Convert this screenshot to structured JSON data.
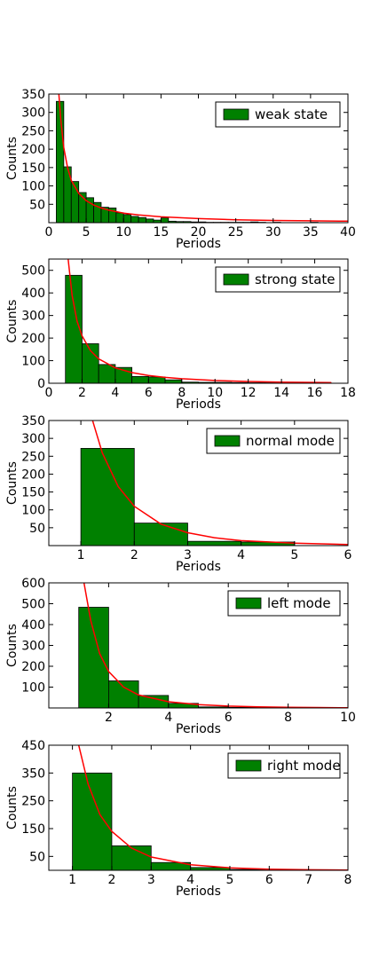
{
  "colors": {
    "bar_fill": "#008000",
    "bar_edge": "#000000",
    "curve": "#ff0000",
    "frame": "#000000"
  },
  "chart_data": [
    {
      "type": "bar",
      "legend": "weak state",
      "legend_position": "top-right",
      "xlabel": "Periods",
      "ylabel": "Counts",
      "xlim": [
        0,
        40
      ],
      "ylim": [
        0,
        350
      ],
      "xticks": [
        "0",
        "5",
        "10",
        "15",
        "20",
        "25",
        "30",
        "35",
        "40"
      ],
      "yticks": [
        "50",
        "100",
        "150",
        "200",
        "250",
        "300",
        "350"
      ],
      "bins": [
        [
          1,
          2,
          330
        ],
        [
          2,
          3,
          152
        ],
        [
          3,
          4,
          112
        ],
        [
          4,
          5,
          82
        ],
        [
          5,
          6,
          68
        ],
        [
          6,
          7,
          55
        ],
        [
          7,
          8,
          42
        ],
        [
          8,
          9,
          40
        ],
        [
          9,
          10,
          27
        ],
        [
          10,
          11,
          22
        ],
        [
          11,
          12,
          17
        ],
        [
          12,
          13,
          14
        ],
        [
          13,
          14,
          10
        ],
        [
          14,
          15,
          7
        ],
        [
          15,
          16,
          13
        ],
        [
          16,
          17,
          4
        ],
        [
          17,
          18,
          3
        ],
        [
          18,
          19,
          3
        ],
        [
          19,
          20,
          2
        ],
        [
          20,
          21,
          2
        ],
        [
          21,
          22,
          1
        ],
        [
          22,
          23,
          1
        ],
        [
          23,
          24,
          1
        ],
        [
          24,
          25,
          1
        ],
        [
          25,
          26,
          1
        ],
        [
          26,
          27,
          1
        ],
        [
          27,
          28,
          2
        ],
        [
          28,
          29,
          1
        ],
        [
          30,
          31,
          1
        ],
        [
          35,
          36,
          1
        ]
      ],
      "fit_curve": {
        "x": [
          1.3,
          1.6,
          2,
          2.5,
          3,
          4,
          5,
          6,
          7,
          8,
          10,
          12,
          15,
          20,
          25,
          30,
          35,
          40
        ],
        "y": [
          360,
          280,
          205,
          150,
          115,
          80,
          60,
          48,
          40,
          34,
          26,
          21,
          16,
          11,
          8,
          6,
          5,
          4
        ]
      }
    },
    {
      "type": "bar",
      "legend": "strong state",
      "legend_position": "top-right",
      "xlabel": "Periods",
      "ylabel": "Counts",
      "xlim": [
        0,
        18
      ],
      "ylim": [
        0,
        550
      ],
      "xticks": [
        "0",
        "2",
        "4",
        "6",
        "8",
        "10",
        "12",
        "14",
        "16",
        "18"
      ],
      "yticks": [
        "0",
        "100",
        "200",
        "300",
        "400",
        "500"
      ],
      "bins": [
        [
          1,
          2,
          478
        ],
        [
          2,
          3,
          175
        ],
        [
          3,
          4,
          83
        ],
        [
          4,
          5,
          70
        ],
        [
          5,
          6,
          30
        ],
        [
          6,
          7,
          28
        ],
        [
          7,
          8,
          15
        ],
        [
          8,
          9,
          5
        ],
        [
          9,
          10,
          4
        ],
        [
          10,
          11,
          4
        ],
        [
          11,
          12,
          3
        ],
        [
          12,
          13,
          2
        ],
        [
          13,
          14,
          2
        ],
        [
          14,
          15,
          1
        ],
        [
          15,
          16,
          1
        ],
        [
          16,
          17,
          1
        ]
      ],
      "fit_curve": {
        "x": [
          1.15,
          1.4,
          1.7,
          2,
          2.5,
          3,
          4,
          5,
          6,
          7,
          8,
          10,
          12,
          14,
          17
        ],
        "y": [
          560,
          390,
          275,
          210,
          145,
          108,
          68,
          47,
          34,
          26,
          20,
          12,
          8,
          5,
          3
        ]
      }
    },
    {
      "type": "bar",
      "legend": "normal mode",
      "legend_position": "top-right",
      "xlabel": "Periods",
      "ylabel": "Counts",
      "xlim": [
        0.4,
        6
      ],
      "ylim": [
        0,
        350
      ],
      "xticks": [
        "1",
        "2",
        "3",
        "4",
        "5",
        "6"
      ],
      "yticks": [
        "50",
        "100",
        "150",
        "200",
        "250",
        "300",
        "350"
      ],
      "bins": [
        [
          1,
          2,
          272
        ],
        [
          2,
          3,
          63
        ],
        [
          3,
          4,
          12
        ],
        [
          4,
          5,
          10
        ]
      ],
      "fit_curve": {
        "x": [
          1.2,
          1.4,
          1.7,
          2,
          2.5,
          3,
          3.5,
          4,
          5,
          6
        ],
        "y": [
          360,
          260,
          165,
          110,
          60,
          36,
          22,
          14,
          7,
          3
        ]
      }
    },
    {
      "type": "bar",
      "legend": "left mode",
      "legend_position": "top-right",
      "xlabel": "Periods",
      "ylabel": "Counts",
      "xlim": [
        0,
        10
      ],
      "ylim": [
        0,
        600
      ],
      "xticks": [
        "2",
        "4",
        "6",
        "8",
        "10"
      ],
      "yticks": [
        "100",
        "200",
        "300",
        "400",
        "500",
        "600"
      ],
      "bins": [
        [
          1,
          2,
          483
        ],
        [
          2,
          3,
          130
        ],
        [
          3,
          4,
          60
        ],
        [
          4,
          5,
          22
        ],
        [
          5,
          6,
          5
        ],
        [
          6,
          7,
          3
        ],
        [
          7,
          8,
          2
        ],
        [
          9,
          10,
          2
        ]
      ],
      "fit_curve": {
        "x": [
          1.15,
          1.4,
          1.7,
          2,
          2.5,
          3,
          4,
          5,
          6,
          7,
          8,
          9,
          10
        ],
        "y": [
          620,
          420,
          260,
          175,
          100,
          62,
          30,
          16,
          9,
          5,
          3,
          2,
          1
        ]
      }
    },
    {
      "type": "bar",
      "legend": "right mode",
      "legend_position": "top-right",
      "xlabel": "Periods",
      "ylabel": "Counts",
      "xlim": [
        0.4,
        8
      ],
      "ylim": [
        0,
        450
      ],
      "xticks": [
        "1",
        "2",
        "3",
        "4",
        "5",
        "6",
        "7",
        "8"
      ],
      "yticks": [
        "50",
        "150",
        "250",
        "350",
        "450"
      ],
      "bins": [
        [
          1,
          2,
          350
        ],
        [
          2,
          3,
          88
        ],
        [
          3,
          4,
          28
        ],
        [
          4,
          5,
          10
        ],
        [
          5,
          6,
          3
        ],
        [
          6,
          7,
          2
        ]
      ],
      "fit_curve": {
        "x": [
          1.15,
          1.4,
          1.7,
          2,
          2.5,
          3,
          4,
          5,
          6,
          7,
          8
        ],
        "y": [
          455,
          310,
          200,
          140,
          80,
          48,
          20,
          9,
          4,
          2,
          1
        ]
      }
    }
  ]
}
